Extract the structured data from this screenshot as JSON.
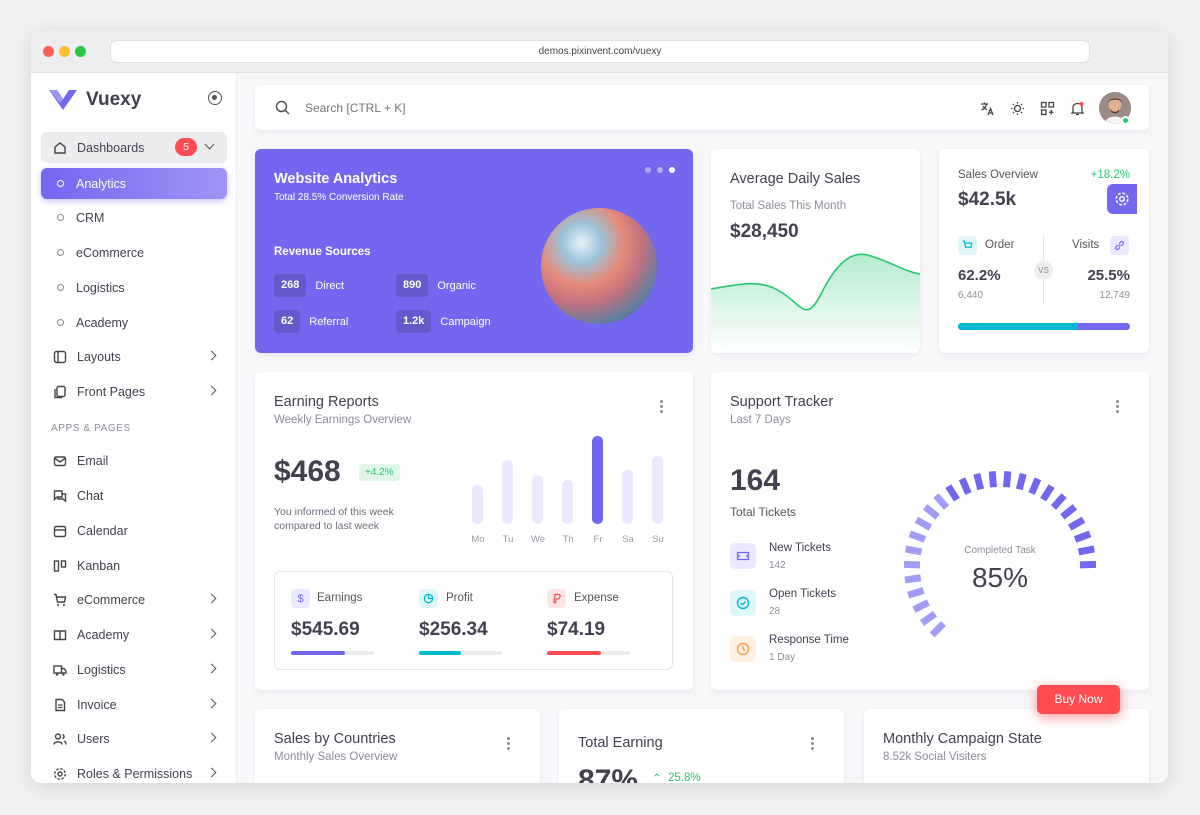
{
  "browser": {
    "url": "demos.pixinvent.com/vuexy"
  },
  "app": {
    "name": "Vuexy"
  },
  "sidebar": {
    "dashboards": {
      "label": "Dashboards",
      "badge": "5"
    },
    "sub_items": [
      "Analytics",
      "CRM",
      "eCommerce",
      "Logistics",
      "Academy"
    ],
    "layouts": "Layouts",
    "front_pages": "Front Pages",
    "section_label": "APPS & PAGES",
    "apps": [
      "Email",
      "Chat",
      "Calendar",
      "Kanban",
      "eCommerce",
      "Academy",
      "Logistics",
      "Invoice",
      "Users",
      "Roles & Permissions"
    ]
  },
  "topbar": {
    "search_placeholder": "Search [CTRL + K]"
  },
  "website_analytics": {
    "title": "Website Analytics",
    "subtitle": "Total 28.5% Conversion Rate",
    "section": "Revenue Sources",
    "sources": [
      {
        "value": "268",
        "label": "Direct"
      },
      {
        "value": "890",
        "label": "Organic"
      },
      {
        "value": "62",
        "label": "Referral"
      },
      {
        "value": "1.2k",
        "label": "Campaign"
      }
    ]
  },
  "avg_daily_sales": {
    "title": "Average Daily Sales",
    "subtitle": "Total Sales This Month",
    "value": "$28,450"
  },
  "sales_overview": {
    "title": "Sales Overview",
    "change": "+18.2%",
    "value": "$42.5k",
    "order_label": "Order",
    "order_pct": "62.2%",
    "order_count": "6,440",
    "visits_label": "Visits",
    "visits_pct": "25.5%",
    "visits_count": "12,749",
    "vs": "VS",
    "order_share": 0.7
  },
  "earning_reports": {
    "title": "Earning Reports",
    "subtitle": "Weekly Earnings Overview",
    "value": "$468",
    "change": "+4.2%",
    "note_line1": "You informed of this week",
    "note_line2": "compared to last week",
    "chart_data": {
      "type": "bar",
      "categories": [
        "Mo",
        "Tu",
        "We",
        "Th",
        "Fr",
        "Sa",
        "Su"
      ],
      "values": [
        40,
        65,
        50,
        45,
        90,
        55,
        70
      ],
      "highlight": "Fr"
    },
    "stats": [
      {
        "label": "Earnings",
        "value": "$545.69",
        "color": "#7367f0",
        "progress": 0.65
      },
      {
        "label": "Profit",
        "value": "$256.34",
        "color": "#00bad1",
        "progress": 0.5
      },
      {
        "label": "Expense",
        "value": "$74.19",
        "color": "#ff4c51",
        "progress": 0.65
      }
    ]
  },
  "support_tracker": {
    "title": "Support Tracker",
    "subtitle": "Last 7 Days",
    "tickets": "164",
    "tickets_label": "Total Tickets",
    "items": [
      {
        "label": "New Tickets",
        "value": "142"
      },
      {
        "label": "Open Tickets",
        "value": "28"
      },
      {
        "label": "Response Time",
        "value": "1 Day"
      }
    ],
    "gauge_label": "Completed Task",
    "gauge_value": "85%",
    "gauge_fraction": 0.85
  },
  "bottom_cards": {
    "countries": {
      "title": "Sales by Countries",
      "subtitle": "Monthly Sales Overview"
    },
    "total_earning": {
      "title": "Total Earning",
      "value": "87%",
      "change": "25.8%"
    },
    "campaign": {
      "title": "Monthly Campaign State",
      "subtitle": "8.52k Social Visiters"
    }
  },
  "buy_now": "Buy Now"
}
